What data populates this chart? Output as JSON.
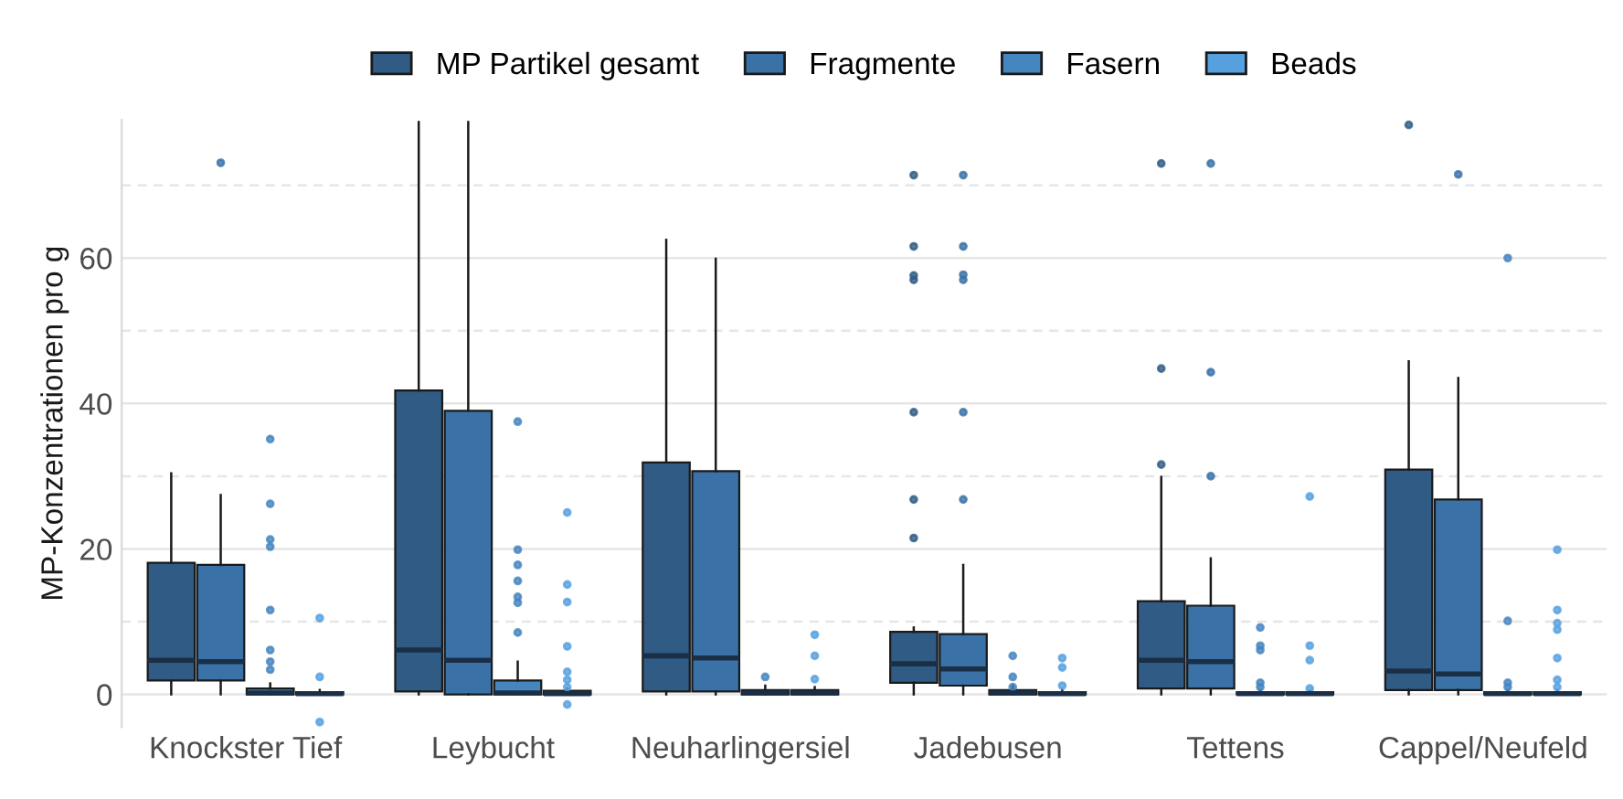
{
  "chart_data": {
    "type": "box",
    "ylabel": "MP-Konzentrationen pro g",
    "categories": [
      "Knockster Tief",
      "Leybucht",
      "Neuharlingersiel",
      "Jadebusen",
      "Tettens",
      "Cappel/Neufeld"
    ],
    "ylim": [
      -4.5,
      79
    ],
    "yticks": [
      0,
      {
        "value": 10,
        "label": null
      },
      20,
      {
        "value": 30,
        "label": null
      },
      40,
      {
        "value": 50,
        "label": null
      },
      60,
      {
        "value": 70,
        "label": null
      }
    ],
    "grid": "y",
    "legend": "top",
    "series": [
      {
        "name": "MP Partikel gesamt",
        "color": "#2f5b85",
        "boxes": [
          {
            "low": 0,
            "q1": 1.9,
            "median": 4.7,
            "q3": 18.1,
            "high": 30.4
          },
          {
            "low": 0,
            "q1": 0.4,
            "median": 6.1,
            "q3": 41.8,
            "high": 78.7
          },
          {
            "low": 0,
            "q1": 0.4,
            "median": 5.3,
            "q3": 31.9,
            "high": 62.5
          },
          {
            "low": 0,
            "q1": 1.6,
            "median": 4.2,
            "q3": 8.6,
            "high": 9.2,
            "outliers": [
              71.4,
              61.6,
              57.6,
              57.0,
              38.8,
              26.8,
              21.5
            ]
          },
          {
            "low": 0,
            "q1": 0.8,
            "median": 4.7,
            "q3": 12.8,
            "high": 29.9,
            "outliers": [
              73.0,
              44.8,
              31.6
            ]
          },
          {
            "low": 0,
            "q1": 0.6,
            "median": 3.2,
            "q3": 30.9,
            "high": 45.8,
            "outliers": [
              78.3
            ]
          }
        ]
      },
      {
        "name": "Fragmente",
        "color": "#3a72a8",
        "boxes": [
          {
            "low": 0,
            "q1": 1.9,
            "median": 4.5,
            "q3": 17.8,
            "high": 27.4,
            "outliers": [
              73.1
            ]
          },
          {
            "low": 0,
            "q1": 0,
            "median": 4.7,
            "q3": 39.0,
            "high": 78.7
          },
          {
            "low": 0,
            "q1": 0.4,
            "median": 5.0,
            "q3": 30.7,
            "high": 59.9
          },
          {
            "low": 0,
            "q1": 1.2,
            "median": 3.5,
            "q3": 8.3,
            "high": 17.8,
            "outliers": [
              71.4,
              61.6,
              57.7,
              57.0,
              38.8,
              26.8
            ]
          },
          {
            "low": 0,
            "q1": 0.8,
            "median": 4.5,
            "q3": 12.2,
            "high": 18.7,
            "outliers": [
              73.0,
              44.3,
              30.0
            ]
          },
          {
            "low": 0,
            "q1": 0.6,
            "median": 2.8,
            "q3": 26.8,
            "high": 43.5,
            "outliers": [
              71.5
            ]
          }
        ]
      },
      {
        "name": "Fasern",
        "color": "#4585c0",
        "boxes": [
          {
            "low": 0,
            "q1": 0,
            "median": 0.2,
            "q3": 0.8,
            "high": 1.5,
            "outliers": [
              35.1,
              26.2,
              21.3,
              20.3,
              11.6,
              6.1,
              4.5,
              3.4
            ]
          },
          {
            "low": 0,
            "q1": 0,
            "median": 0.2,
            "q3": 1.9,
            "high": 4.5,
            "outliers": [
              37.5,
              19.9,
              17.8,
              15.6,
              13.4,
              12.6,
              8.5
            ]
          },
          {
            "low": 0,
            "q1": 0,
            "median": 0.2,
            "q3": 0.6,
            "high": 1.2,
            "outliers": [
              2.4
            ]
          },
          {
            "low": 0,
            "q1": 0,
            "median": 0.2,
            "q3": 0.6,
            "high": 1.2,
            "outliers": [
              5.3,
              2.4,
              1.0
            ]
          },
          {
            "low": 0,
            "q1": 0,
            "median": 0.1,
            "q3": 0.3,
            "high": 0.6,
            "outliers": [
              9.2,
              6.7,
              6.1,
              1.6,
              1.0
            ]
          },
          {
            "low": 0,
            "q1": 0,
            "median": 0.1,
            "q3": 0.3,
            "high": 0.6,
            "outliers": [
              60.0,
              10.1,
              1.6,
              1.0
            ]
          }
        ]
      },
      {
        "name": "Beads",
        "color": "#56a0e0",
        "boxes": [
          {
            "low": 0,
            "q1": 0,
            "median": 0.1,
            "q3": 0.3,
            "high": 0.6,
            "outliers": [
              10.5,
              2.4,
              -3.8
            ]
          },
          {
            "low": 0,
            "q1": 0,
            "median": 0.1,
            "q3": 0.5,
            "high": 0.8,
            "outliers": [
              25.0,
              15.1,
              12.7,
              6.6,
              3.1,
              2.0,
              1.0,
              -1.4
            ]
          },
          {
            "low": 0,
            "q1": 0,
            "median": 0.2,
            "q3": 0.6,
            "high": 1.0,
            "outliers": [
              8.2,
              5.3,
              2.1
            ]
          },
          {
            "low": 0,
            "q1": 0,
            "median": 0.1,
            "q3": 0.3,
            "high": 0.6,
            "outliers": [
              5.0,
              3.7,
              1.2
            ]
          },
          {
            "low": 0,
            "q1": 0,
            "median": 0.1,
            "q3": 0.3,
            "high": 0.5,
            "outliers": [
              27.2,
              6.7,
              4.7,
              0.8
            ]
          },
          {
            "low": 0,
            "q1": 0,
            "median": 0.1,
            "q3": 0.3,
            "high": 0.6,
            "outliers": [
              19.9,
              11.6,
              9.8,
              8.9,
              5.0,
              2.0,
              1.0
            ]
          }
        ]
      }
    ]
  }
}
